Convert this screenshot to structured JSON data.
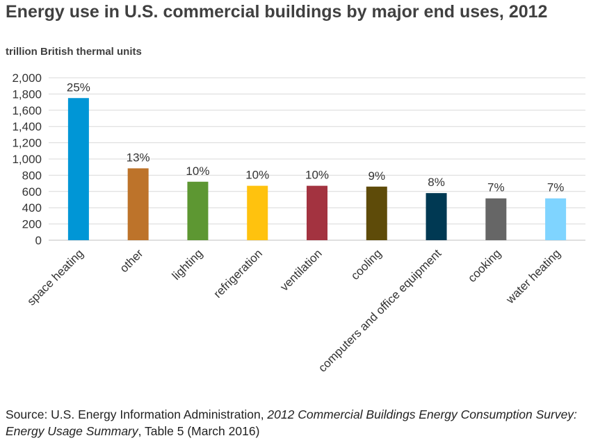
{
  "title": "Energy use in U.S. commercial buildings by major end uses, 2012",
  "subtitle": "trillion British thermal units",
  "source": {
    "prefix": "Source: U.S. Energy Information Administration, ",
    "italic": "2012 Commercial Buildings Energy Consumption Survey: Energy Usage Summary",
    "suffix": ", Table 5 (March 2016)"
  },
  "chart_data": {
    "type": "bar",
    "title": "Energy use in U.S. commercial buildings by major end uses, 2012",
    "ylabel": "trillion British thermal units",
    "xlabel": "",
    "ylim": [
      0,
      2000
    ],
    "yticks": [
      "0",
      "200",
      "400",
      "600",
      "800",
      "1,000",
      "1,200",
      "1,400",
      "1,600",
      "1,800",
      "2,000"
    ],
    "grid": true,
    "categories": [
      "space heating",
      "other",
      "lighting",
      "refrigeration",
      "ventilation",
      "cooling",
      "computers and office equipment",
      "cooking",
      "water heating"
    ],
    "values": [
      1750,
      885,
      720,
      670,
      670,
      660,
      580,
      515,
      515
    ],
    "data_labels": [
      "25%",
      "13%",
      "10%",
      "10%",
      "10%",
      "9%",
      "8%",
      "7%",
      "7%"
    ],
    "colors": [
      "#0096D6",
      "#BD732A",
      "#5D9732",
      "#FFC20E",
      "#A33340",
      "#5E4B09",
      "#003953",
      "#666666",
      "#7FD4FF"
    ]
  }
}
